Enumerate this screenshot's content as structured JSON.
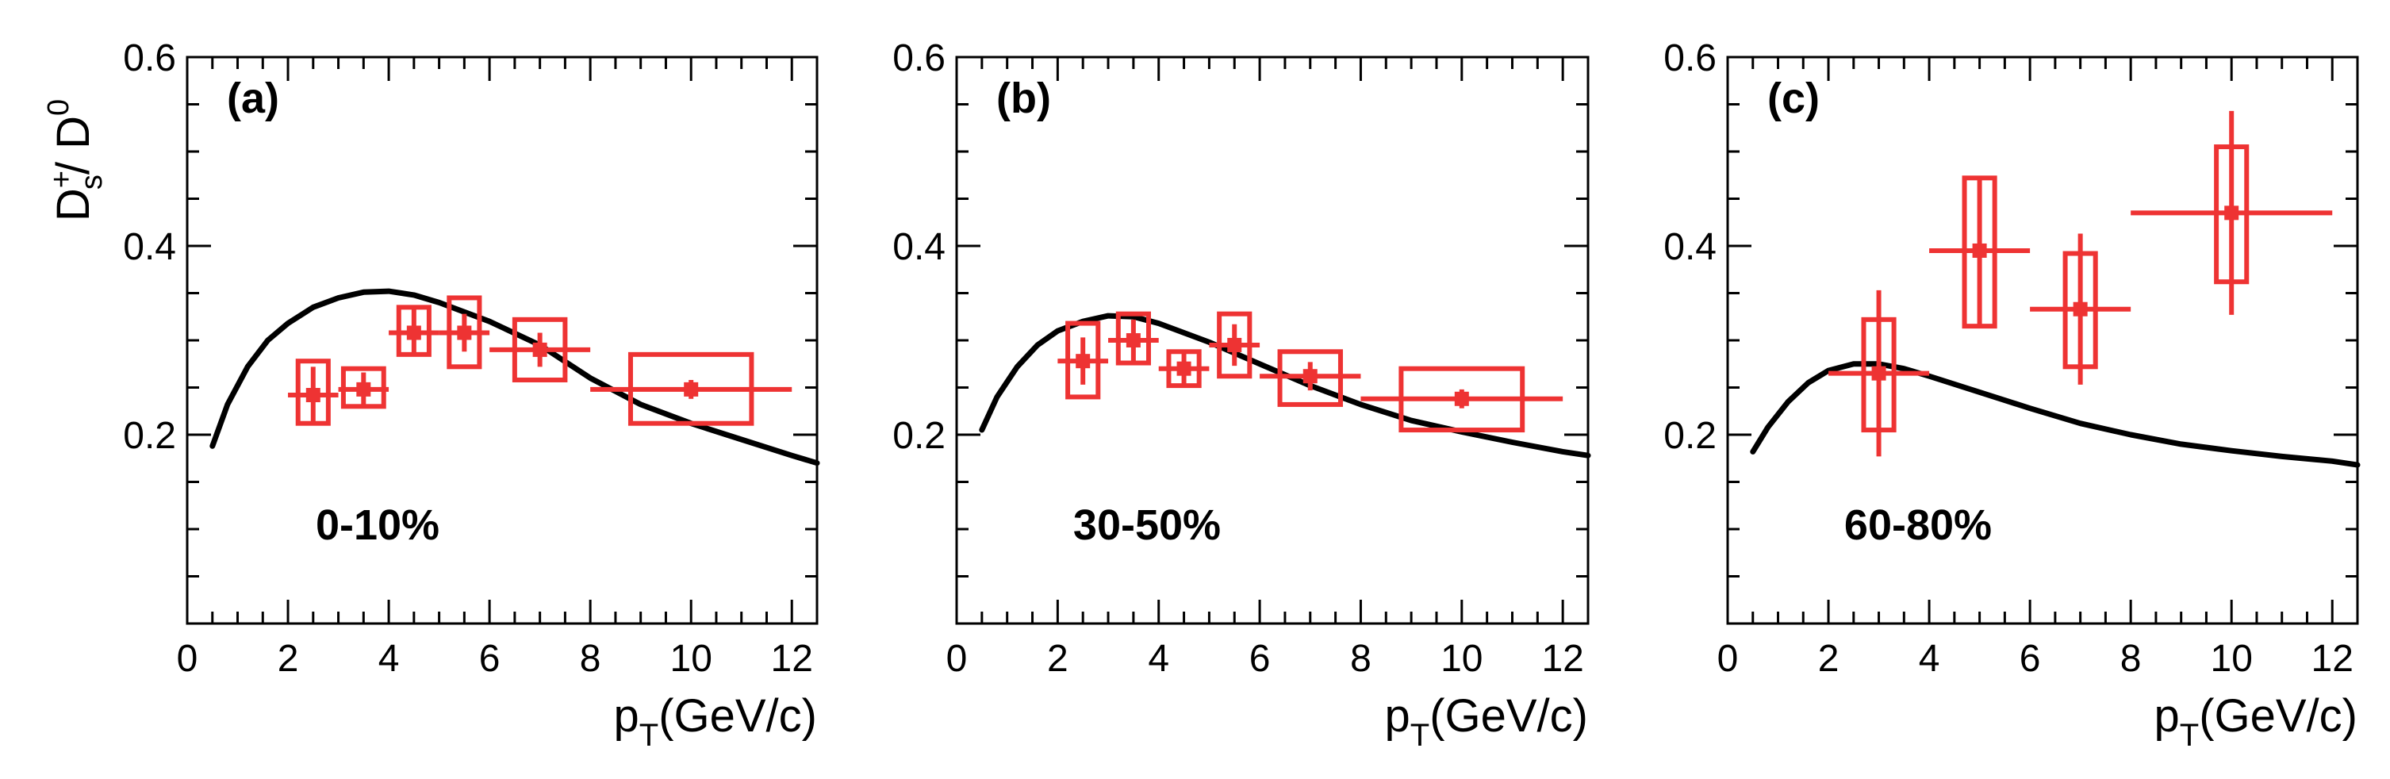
{
  "figure": {
    "y_axis_title": {
      "main": "D",
      "sup1": "+",
      "sub1": "s",
      "slash": "/ D",
      "sup2": "0"
    },
    "x_axis_title": {
      "main": "p",
      "sub": "T",
      "unit": "(GeV/c)"
    },
    "colors": {
      "data": "#ee3333",
      "model": "#000000",
      "axis": "#000000"
    }
  },
  "chart_data": [
    {
      "type": "scatter",
      "panel_label": "(a)",
      "centrality": "0-10%",
      "xlim": [
        0,
        12.5
      ],
      "ylim": [
        0,
        0.6
      ],
      "x_ticks": [
        "0",
        "2",
        "4",
        "6",
        "8",
        "10",
        "12"
      ],
      "y_ticks": [
        "0.2",
        "0.4",
        "0.6"
      ],
      "points": [
        {
          "x": 2.5,
          "y": 0.242,
          "xerr": 0.5,
          "stat": 0.03,
          "sys_lo": 0.212,
          "sys_hi": 0.278,
          "sys_w": 0.3
        },
        {
          "x": 3.5,
          "y": 0.248,
          "xerr": 0.5,
          "stat": 0.018,
          "sys_lo": 0.23,
          "sys_hi": 0.27,
          "sys_w": 0.4
        },
        {
          "x": 4.5,
          "y": 0.308,
          "xerr": 0.5,
          "stat": 0.025,
          "sys_lo": 0.285,
          "sys_hi": 0.335,
          "sys_w": 0.3
        },
        {
          "x": 5.5,
          "y": 0.308,
          "xerr": 0.5,
          "stat": 0.02,
          "sys_lo": 0.272,
          "sys_hi": 0.345,
          "sys_w": 0.3
        },
        {
          "x": 7.0,
          "y": 0.29,
          "xerr": 1.0,
          "stat": 0.018,
          "sys_lo": 0.258,
          "sys_hi": 0.322,
          "sys_w": 0.5
        },
        {
          "x": 10.0,
          "y": 0.248,
          "xerr": 2.0,
          "stat": 0.01,
          "sys_lo": 0.212,
          "sys_hi": 0.285,
          "sys_w": 1.2
        }
      ],
      "model_curve": {
        "x": [
          0.5,
          0.8,
          1.2,
          1.6,
          2.0,
          2.5,
          3.0,
          3.5,
          4.0,
          4.5,
          5.0,
          6.0,
          7.0,
          8.0,
          9.0,
          10.0,
          11.0,
          12.0,
          12.5
        ],
        "y": [
          0.188,
          0.232,
          0.272,
          0.3,
          0.318,
          0.335,
          0.345,
          0.351,
          0.352,
          0.348,
          0.34,
          0.32,
          0.295,
          0.26,
          0.232,
          0.212,
          0.195,
          0.178,
          0.17
        ]
      }
    },
    {
      "type": "scatter",
      "panel_label": "(b)",
      "centrality": "30-50%",
      "xlim": [
        0,
        12.5
      ],
      "ylim": [
        0,
        0.6
      ],
      "x_ticks": [
        "0",
        "2",
        "4",
        "6",
        "8",
        "10",
        "12"
      ],
      "y_ticks": [
        "0.2",
        "0.4",
        "0.6"
      ],
      "points": [
        {
          "x": 2.5,
          "y": 0.278,
          "xerr": 0.5,
          "stat": 0.025,
          "sys_lo": 0.24,
          "sys_hi": 0.318,
          "sys_w": 0.3
        },
        {
          "x": 3.5,
          "y": 0.3,
          "xerr": 0.5,
          "stat": 0.022,
          "sys_lo": 0.276,
          "sys_hi": 0.328,
          "sys_w": 0.3
        },
        {
          "x": 4.5,
          "y": 0.27,
          "xerr": 0.5,
          "stat": 0.018,
          "sys_lo": 0.252,
          "sys_hi": 0.288,
          "sys_w": 0.3
        },
        {
          "x": 5.5,
          "y": 0.295,
          "xerr": 0.5,
          "stat": 0.022,
          "sys_lo": 0.262,
          "sys_hi": 0.328,
          "sys_w": 0.3
        },
        {
          "x": 7.0,
          "y": 0.262,
          "xerr": 1.0,
          "stat": 0.015,
          "sys_lo": 0.232,
          "sys_hi": 0.288,
          "sys_w": 0.6
        },
        {
          "x": 10.0,
          "y": 0.238,
          "xerr": 2.0,
          "stat": 0.01,
          "sys_lo": 0.205,
          "sys_hi": 0.27,
          "sys_w": 1.2
        }
      ],
      "model_curve": {
        "x": [
          0.5,
          0.8,
          1.2,
          1.6,
          2.0,
          2.5,
          3.0,
          3.5,
          4.0,
          5.0,
          6.0,
          7.0,
          8.0,
          9.0,
          10.0,
          11.0,
          12.0,
          12.5
        ],
        "y": [
          0.205,
          0.24,
          0.272,
          0.295,
          0.31,
          0.32,
          0.326,
          0.325,
          0.318,
          0.298,
          0.275,
          0.252,
          0.232,
          0.215,
          0.203,
          0.192,
          0.182,
          0.178
        ]
      }
    },
    {
      "type": "scatter",
      "panel_label": "(c)",
      "centrality": "60-80%",
      "xlim": [
        0,
        12.5
      ],
      "ylim": [
        0,
        0.6
      ],
      "x_ticks": [
        "0",
        "2",
        "4",
        "6",
        "8",
        "10",
        "12"
      ],
      "y_ticks": [
        "0.2",
        "0.4",
        "0.6"
      ],
      "points": [
        {
          "x": 3.0,
          "y": 0.265,
          "xerr": 1.0,
          "stat": 0.088,
          "sys_lo": 0.205,
          "sys_hi": 0.322,
          "sys_w": 0.3
        },
        {
          "x": 5.0,
          "y": 0.395,
          "xerr": 1.0,
          "stat": 0.078,
          "sys_lo": 0.315,
          "sys_hi": 0.472,
          "sys_w": 0.3
        },
        {
          "x": 7.0,
          "y": 0.333,
          "xerr": 1.0,
          "stat": 0.08,
          "sys_lo": 0.272,
          "sys_hi": 0.392,
          "sys_w": 0.3
        },
        {
          "x": 10.0,
          "y": 0.435,
          "xerr": 2.0,
          "stat": 0.108,
          "sys_lo": 0.362,
          "sys_hi": 0.505,
          "sys_w": 0.3
        }
      ],
      "model_curve": {
        "x": [
          0.5,
          0.8,
          1.2,
          1.6,
          2.0,
          2.5,
          3.0,
          3.5,
          4.0,
          5.0,
          6.0,
          7.0,
          8.0,
          9.0,
          10.0,
          11.0,
          12.0,
          12.5
        ],
        "y": [
          0.182,
          0.208,
          0.235,
          0.255,
          0.268,
          0.275,
          0.275,
          0.27,
          0.262,
          0.245,
          0.228,
          0.212,
          0.2,
          0.19,
          0.183,
          0.177,
          0.172,
          0.168
        ]
      }
    }
  ]
}
